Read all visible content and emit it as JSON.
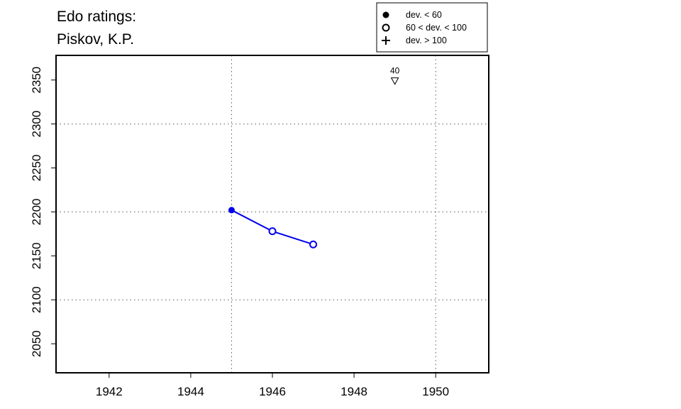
{
  "chart_data": {
    "type": "line",
    "title_lines": [
      "Edo ratings:",
      "Piskov, K.P."
    ],
    "xlabel": "",
    "ylabel": "",
    "xlim": [
      1940.7,
      1951.3
    ],
    "ylim": [
      2017,
      2378
    ],
    "x_ticks": [
      1942,
      1944,
      1946,
      1948,
      1950
    ],
    "y_ticks": [
      2050,
      2100,
      2150,
      2200,
      2250,
      2300,
      2350
    ],
    "grid_x": [
      1945,
      1950
    ],
    "grid_y": [
      2100,
      2200,
      2300
    ],
    "grid": true,
    "series": [
      {
        "color": "#0000ee",
        "points": [
          {
            "x": 1945,
            "y": 2202,
            "marker": "filled"
          },
          {
            "x": 1946,
            "y": 2178,
            "marker": "open"
          },
          {
            "x": 1947,
            "y": 2163,
            "marker": "open"
          }
        ]
      }
    ],
    "annotations": [
      {
        "x": 1949,
        "y": 2350,
        "label": "40",
        "marker": "triangle-down"
      }
    ],
    "legend": {
      "placement": "top-right",
      "items": [
        {
          "symbol": "filled-circle",
          "label": "dev. < 60"
        },
        {
          "symbol": "open-circle",
          "label": "60 < dev. < 100"
        },
        {
          "symbol": "plus",
          "label": "dev. > 100"
        }
      ]
    }
  }
}
